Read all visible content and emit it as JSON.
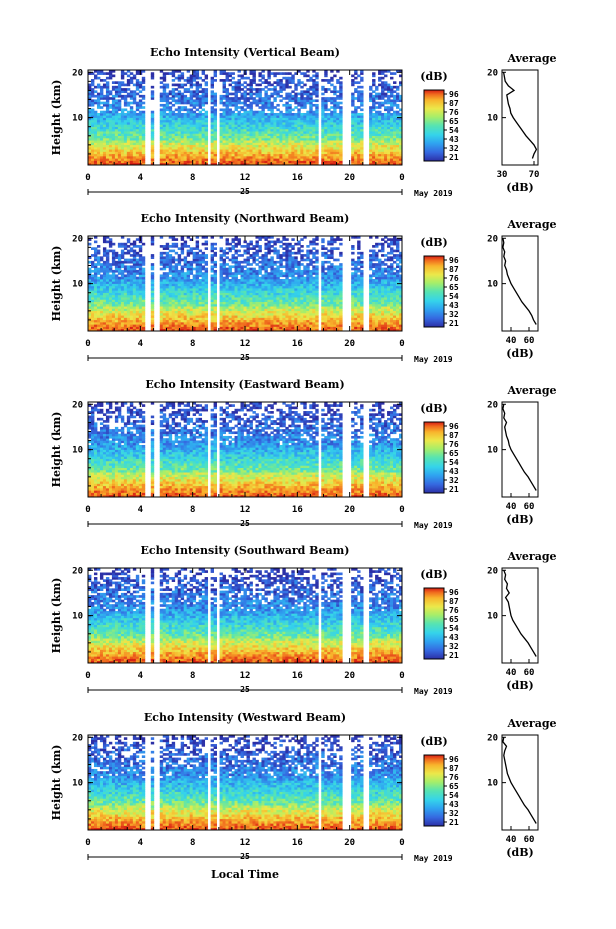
{
  "chart_data": {
    "type": "heatmap",
    "xlabel": "Local Time",
    "x_ticks": [
      "0",
      "4",
      "8",
      "12",
      "16",
      "20",
      "0"
    ],
    "date_day": "25",
    "date_month_year": "May 2019",
    "ylabel": "Height (km)",
    "y_ticks": [
      "10",
      "20"
    ],
    "ylim": [
      0,
      20
    ],
    "xlim": [
      0,
      24
    ],
    "gaps_hours": [
      [
        4.35,
        4.75
      ],
      [
        5.05,
        5.45
      ],
      [
        9.05,
        9.45
      ],
      [
        9.75,
        10.15
      ],
      [
        17.5,
        17.9
      ],
      [
        19.4,
        20.1
      ],
      [
        21.05,
        21.5
      ]
    ],
    "colorbar_label": "(dB)",
    "average_title": "Average",
    "average_xlabel": "(dB)",
    "palette": [
      "#2c2fa6",
      "#3568e0",
      "#2fa4f0",
      "#35d4ea",
      "#58e4b0",
      "#a6ee6a",
      "#ece84a",
      "#f8b42c",
      "#f06a1e",
      "#d61c14"
    ],
    "panels": [
      {
        "title": "Echo Intensity (Vertical Beam)",
        "colorbar_ticks": [
          "96",
          "87",
          "76",
          "65",
          "54",
          "43",
          "32",
          "21"
        ],
        "avg_ticks": [
          "30",
          "70"
        ],
        "avg_xlim": [
          30,
          75
        ],
        "avg_profile": [
          [
            68,
            1
          ],
          [
            70,
            2
          ],
          [
            73,
            3
          ],
          [
            70,
            4
          ],
          [
            65,
            5
          ],
          [
            60,
            6
          ],
          [
            56,
            7
          ],
          [
            52,
            8
          ],
          [
            48,
            9
          ],
          [
            44,
            10
          ],
          [
            41,
            11
          ],
          [
            40,
            12
          ],
          [
            38,
            13
          ],
          [
            37,
            14
          ],
          [
            36,
            15
          ],
          [
            45,
            16
          ],
          [
            38,
            17
          ],
          [
            34,
            18
          ],
          [
            33,
            19
          ],
          [
            32,
            20
          ]
        ]
      },
      {
        "title": "Echo Intensity (Northward Beam)",
        "colorbar_ticks": [
          "96",
          "87",
          "76",
          "65",
          "54",
          "43",
          "32",
          "21"
        ],
        "avg_ticks": [
          "40",
          "60"
        ],
        "avg_xlim": [
          30,
          70
        ],
        "avg_profile": [
          [
            68,
            1
          ],
          [
            65,
            2
          ],
          [
            63,
            3
          ],
          [
            60,
            4
          ],
          [
            56,
            5
          ],
          [
            52,
            6
          ],
          [
            49,
            7
          ],
          [
            46,
            8
          ],
          [
            43,
            9
          ],
          [
            40,
            10
          ],
          [
            38,
            11
          ],
          [
            36,
            12
          ],
          [
            35,
            13
          ],
          [
            33,
            14
          ],
          [
            34,
            15
          ],
          [
            32,
            16
          ],
          [
            33,
            17
          ],
          [
            31,
            18
          ],
          [
            32,
            19
          ],
          [
            31,
            20
          ]
        ]
      },
      {
        "title": "Echo Intensity (Eastward Beam)",
        "colorbar_ticks": [
          "96",
          "87",
          "76",
          "65",
          "54",
          "43",
          "32",
          "21"
        ],
        "avg_ticks": [
          "40",
          "60"
        ],
        "avg_xlim": [
          30,
          70
        ],
        "avg_profile": [
          [
            68,
            1
          ],
          [
            65,
            2
          ],
          [
            62,
            3
          ],
          [
            59,
            4
          ],
          [
            55,
            5
          ],
          [
            52,
            6
          ],
          [
            49,
            7
          ],
          [
            46,
            8
          ],
          [
            43,
            9
          ],
          [
            40,
            10
          ],
          [
            38,
            11
          ],
          [
            37,
            12
          ],
          [
            35,
            13
          ],
          [
            34,
            14
          ],
          [
            33,
            15
          ],
          [
            35,
            16
          ],
          [
            32,
            17
          ],
          [
            33,
            18
          ],
          [
            31,
            19
          ],
          [
            32,
            20
          ]
        ]
      },
      {
        "title": "Echo Intensity (Southward Beam)",
        "colorbar_ticks": [
          "96",
          "87",
          "76",
          "65",
          "54",
          "43",
          "32",
          "21"
        ],
        "avg_ticks": [
          "40",
          "60"
        ],
        "avg_xlim": [
          30,
          70
        ],
        "avg_profile": [
          [
            68,
            1
          ],
          [
            65,
            2
          ],
          [
            62,
            3
          ],
          [
            59,
            4
          ],
          [
            55,
            5
          ],
          [
            51,
            6
          ],
          [
            48,
            7
          ],
          [
            45,
            8
          ],
          [
            42,
            9
          ],
          [
            40,
            10
          ],
          [
            39,
            11
          ],
          [
            38,
            12
          ],
          [
            37,
            13
          ],
          [
            34,
            14
          ],
          [
            38,
            15
          ],
          [
            35,
            16
          ],
          [
            36,
            17
          ],
          [
            33,
            18
          ],
          [
            34,
            19
          ],
          [
            32,
            20
          ]
        ]
      },
      {
        "title": "Echo Intensity (Westward Beam)",
        "colorbar_ticks": [
          "96",
          "87",
          "76",
          "65",
          "54",
          "43",
          "32",
          "21"
        ],
        "avg_ticks": [
          "40",
          "60"
        ],
        "avg_xlim": [
          30,
          70
        ],
        "avg_profile": [
          [
            68,
            1
          ],
          [
            65,
            2
          ],
          [
            62,
            3
          ],
          [
            59,
            4
          ],
          [
            55,
            5
          ],
          [
            52,
            6
          ],
          [
            49,
            7
          ],
          [
            46,
            8
          ],
          [
            43,
            9
          ],
          [
            40,
            10
          ],
          [
            38,
            11
          ],
          [
            36,
            12
          ],
          [
            35,
            13
          ],
          [
            34,
            14
          ],
          [
            33,
            15
          ],
          [
            32,
            16
          ],
          [
            33,
            17
          ],
          [
            35,
            18
          ],
          [
            31,
            19
          ],
          [
            32,
            20
          ]
        ]
      }
    ]
  }
}
